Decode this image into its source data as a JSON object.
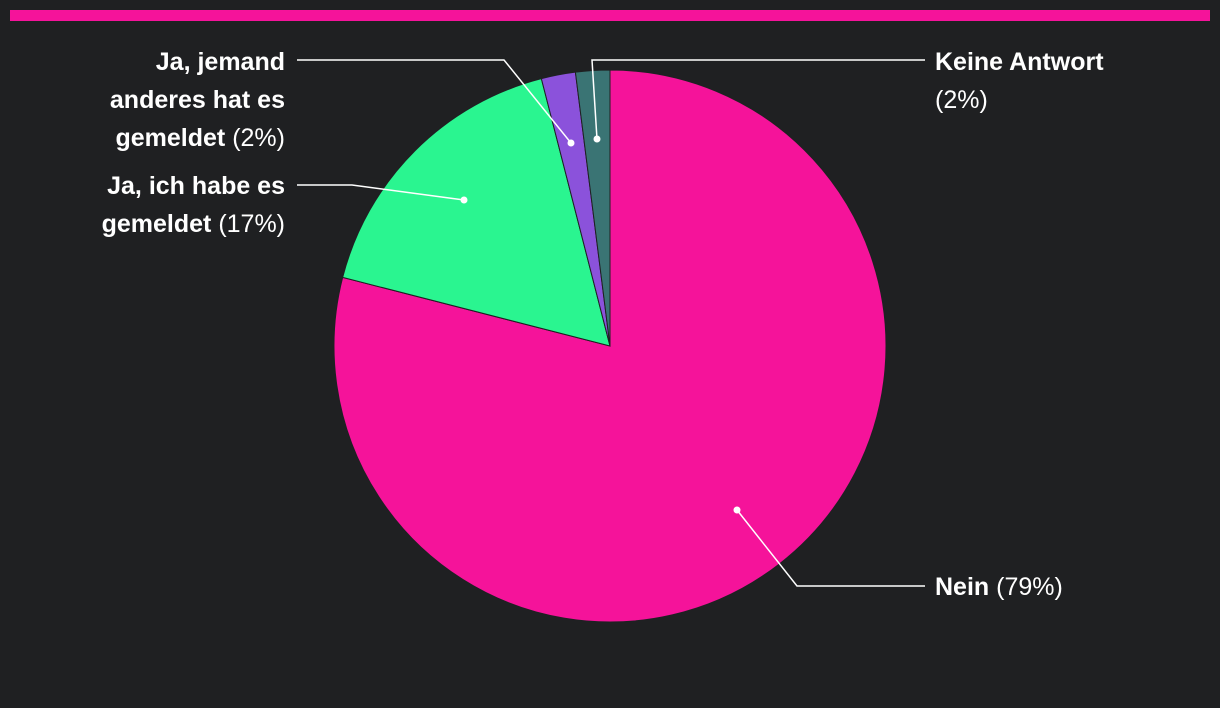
{
  "chart_data": {
    "type": "pie",
    "title": "",
    "slices": [
      {
        "label_lines": [
          "Keine Antwort",
          "(2%)"
        ],
        "name": "Keine Antwort",
        "percent_label": "(2%)",
        "value": 2,
        "color": "#3a7474"
      },
      {
        "label_lines": [
          "Nein (79%)"
        ],
        "name": "Nein",
        "percent_label": "(79%)",
        "value": 79,
        "color": "#f5139a"
      },
      {
        "label_lines": [
          "Ja, ich habe es",
          "gemeldet (17%)"
        ],
        "name": "Ja, ich habe es gemeldet",
        "percent_label": "(17%)",
        "value": 17,
        "color": "#2af590"
      },
      {
        "label_lines": [
          "Ja, jemand",
          "anderes hat es",
          "gemeldet (2%)"
        ],
        "name": "Ja, jemand anderes hat es gemeldet",
        "percent_label": "(2%)",
        "value": 2,
        "color": "#8b52db"
      }
    ]
  },
  "colors": {
    "background": "#1f2022",
    "accent": "#f5139a",
    "leader": "#ffffff"
  }
}
